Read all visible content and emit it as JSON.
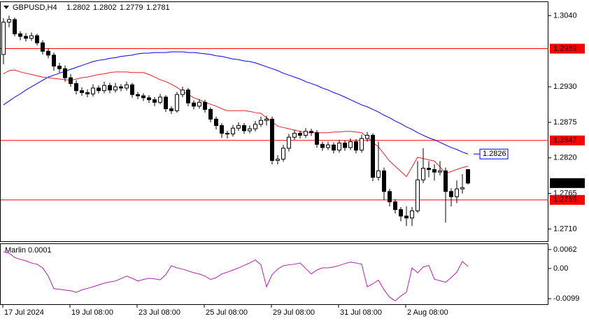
{
  "chart_data": [
    {
      "type": "candlestick",
      "title": "GBPUSD,H4",
      "categories": [
        "17 Jul 2024",
        null,
        null,
        null,
        null,
        null,
        null,
        null,
        null,
        null,
        null,
        null,
        "19 Jul 08:00",
        null,
        null,
        null,
        null,
        null,
        null,
        null,
        null,
        null,
        null,
        null,
        "23 Jul 08:00",
        null,
        null,
        null,
        null,
        null,
        null,
        null,
        null,
        null,
        null,
        null,
        "25 Jul 08:00",
        null,
        null,
        null,
        null,
        null,
        null,
        null,
        null,
        null,
        null,
        null,
        "29 Jul 08:00",
        null,
        null,
        null,
        null,
        null,
        null,
        null,
        null,
        null,
        null,
        null,
        "31 Jul 08:00",
        null,
        null,
        null,
        null,
        null,
        null,
        null,
        null,
        null,
        null,
        null,
        "2 Aug 08:00",
        null,
        null,
        null,
        null,
        null,
        null,
        null,
        null,
        null,
        null,
        null
      ],
      "candles": [
        [
          1.298,
          1.3036,
          1.2965,
          1.303
        ],
        [
          1.303,
          1.304,
          1.3022,
          1.3034
        ],
        [
          1.3034,
          1.3037,
          1.3008,
          1.3012
        ],
        [
          1.3012,
          1.3016,
          1.3002,
          1.3008
        ],
        [
          1.3008,
          1.3013,
          1.3,
          1.3005
        ],
        [
          1.3005,
          1.3014,
          1.3001,
          1.3009
        ],
        [
          1.3009,
          1.3012,
          1.2994,
          1.2998
        ],
        [
          1.2998,
          1.3002,
          1.298,
          1.2985
        ],
        [
          1.2985,
          1.299,
          1.2974,
          1.2979
        ],
        [
          1.2979,
          1.2983,
          1.2955,
          1.2962
        ],
        [
          1.2962,
          1.2967,
          1.2952,
          1.2958
        ],
        [
          1.2958,
          1.2963,
          1.2938,
          1.2944
        ],
        [
          1.2944,
          1.295,
          1.293,
          1.2935
        ],
        [
          1.2935,
          1.294,
          1.2918,
          1.2924
        ],
        [
          1.2924,
          1.2929,
          1.2916,
          1.2921
        ],
        [
          1.2921,
          1.2926,
          1.2914,
          1.2919
        ],
        [
          1.2919,
          1.2934,
          1.2915,
          1.2928
        ],
        [
          1.2928,
          1.2932,
          1.292,
          1.2924
        ],
        [
          1.2924,
          1.2938,
          1.292,
          1.2932
        ],
        [
          1.2932,
          1.2936,
          1.292,
          1.2925
        ],
        [
          1.2925,
          1.2936,
          1.2921,
          1.293
        ],
        [
          1.293,
          1.2934,
          1.2923,
          1.2928
        ],
        [
          1.2928,
          1.2938,
          1.2924,
          1.2933
        ],
        [
          1.2933,
          1.2936,
          1.2913,
          1.2918
        ],
        [
          1.2918,
          1.2922,
          1.2911,
          1.2916
        ],
        [
          1.2916,
          1.292,
          1.2908,
          1.2913
        ],
        [
          1.2913,
          1.2917,
          1.2905,
          1.291
        ],
        [
          1.291,
          1.2914,
          1.29,
          1.2906
        ],
        [
          1.2906,
          1.2919,
          1.2903,
          1.2914
        ],
        [
          1.2914,
          1.2917,
          1.2891,
          1.2896
        ],
        [
          1.2896,
          1.29,
          1.2888,
          1.2893
        ],
        [
          1.2893,
          1.2922,
          1.289,
          1.2918
        ],
        [
          1.2918,
          1.293,
          1.2914,
          1.2925
        ],
        [
          1.2925,
          1.2928,
          1.29,
          1.2905
        ],
        [
          1.2905,
          1.2909,
          1.2895,
          1.29
        ],
        [
          1.29,
          1.2911,
          1.2896,
          1.2906
        ],
        [
          1.2906,
          1.291,
          1.289,
          1.2895
        ],
        [
          1.2895,
          1.2898,
          1.2875,
          1.288
        ],
        [
          1.288,
          1.2884,
          1.2864,
          1.287
        ],
        [
          1.287,
          1.2874,
          1.2851,
          1.2858
        ],
        [
          1.2858,
          1.2862,
          1.285,
          1.2857
        ],
        [
          1.2857,
          1.2871,
          1.2853,
          1.2866
        ],
        [
          1.2866,
          1.2875,
          1.2862,
          1.287
        ],
        [
          1.287,
          1.2874,
          1.2857,
          1.2862
        ],
        [
          1.2862,
          1.287,
          1.2858,
          1.2865
        ],
        [
          1.2865,
          1.2877,
          1.2861,
          1.2872
        ],
        [
          1.2872,
          1.2884,
          1.2868,
          1.2878
        ],
        [
          1.2878,
          1.2885,
          1.287,
          1.288
        ],
        [
          1.288,
          1.2884,
          1.281,
          1.2816
        ],
        [
          1.2816,
          1.2824,
          1.281,
          1.2818
        ],
        [
          1.2818,
          1.284,
          1.2814,
          1.2835
        ],
        [
          1.2835,
          1.2857,
          1.283,
          1.2852
        ],
        [
          1.2852,
          1.2863,
          1.2848,
          1.2858
        ],
        [
          1.2858,
          1.2862,
          1.285,
          1.2855
        ],
        [
          1.2855,
          1.2866,
          1.2851,
          1.2861
        ],
        [
          1.2861,
          1.2865,
          1.2854,
          1.2859
        ],
        [
          1.2859,
          1.2863,
          1.2836,
          1.2841
        ],
        [
          1.2841,
          1.2845,
          1.2831,
          1.2836
        ],
        [
          1.2836,
          1.2845,
          1.2832,
          1.284
        ],
        [
          1.284,
          1.2844,
          1.2827,
          1.2832
        ],
        [
          1.2832,
          1.2848,
          1.2828,
          1.2843
        ],
        [
          1.2843,
          1.2847,
          1.2831,
          1.2836
        ],
        [
          1.2836,
          1.285,
          1.2832,
          1.2845
        ],
        [
          1.2845,
          1.2849,
          1.2827,
          1.2832
        ],
        [
          1.2832,
          1.2856,
          1.2828,
          1.285
        ],
        [
          1.285,
          1.286,
          1.2845,
          1.2855
        ],
        [
          1.2855,
          1.2858,
          1.2784,
          1.279
        ],
        [
          1.279,
          1.2845,
          1.2785,
          1.28
        ],
        [
          1.28,
          1.2805,
          1.2755,
          1.2768
        ],
        [
          1.2768,
          1.2772,
          1.2745,
          1.2752
        ],
        [
          1.2752,
          1.2756,
          1.2734,
          1.274
        ],
        [
          1.274,
          1.2744,
          1.2722,
          1.273
        ],
        [
          1.273,
          1.2745,
          1.2715,
          1.2727
        ],
        [
          1.2727,
          1.2744,
          1.2715,
          1.2738
        ],
        [
          1.2738,
          1.2815,
          1.2735,
          1.2786
        ],
        [
          1.2786,
          1.2835,
          1.2781,
          1.2804
        ],
        [
          1.2804,
          1.2815,
          1.279,
          1.2802
        ],
        [
          1.2802,
          1.281,
          1.2785,
          1.2798
        ],
        [
          1.2798,
          1.2815,
          1.2793,
          1.28
        ],
        [
          1.28,
          1.2805,
          1.272,
          1.2768
        ],
        [
          1.2768,
          1.2773,
          1.2745,
          1.276
        ],
        [
          1.276,
          1.2785,
          1.275,
          1.2772
        ],
        [
          1.2772,
          1.2795,
          1.2765,
          1.2774
        ],
        [
          1.2802,
          1.2802,
          1.2779,
          1.2781
        ]
      ],
      "series": [
        {
          "color": "#0000ff",
          "values": [
            1.2902,
            1.2908,
            1.2914,
            1.2919,
            1.2925,
            1.293,
            1.2935,
            1.294,
            1.2945,
            1.2948,
            1.2951,
            1.2954,
            1.2957,
            1.296,
            1.2963,
            1.2966,
            1.2969,
            1.2971,
            1.2972,
            1.2974,
            1.2975,
            1.2977,
            1.2978,
            1.2979,
            1.2981,
            1.2982,
            1.2982,
            1.2983,
            1.2983,
            1.2983,
            1.2984,
            1.2984,
            1.2984,
            1.2983,
            1.2983,
            1.2982,
            1.2981,
            1.298,
            1.2978,
            1.2977,
            1.2975,
            1.2973,
            1.2972,
            1.297,
            1.2969,
            1.2967,
            1.2964,
            1.2961,
            1.2958,
            1.2955,
            1.2951,
            1.2948,
            1.2945,
            1.2942,
            1.2938,
            1.2935,
            1.2932,
            1.2928,
            1.2925,
            1.2921,
            1.2918,
            1.2914,
            1.291,
            1.2906,
            1.2902,
            1.2899,
            1.2895,
            1.2891,
            1.2886,
            1.2882,
            1.2877,
            1.2873,
            1.2868,
            1.2864,
            1.2859,
            1.2855,
            1.2851,
            1.2848,
            1.2844,
            1.284,
            1.2836,
            1.2833,
            1.2829,
            1.2826
          ]
        },
        {
          "color": "#e8202a",
          "values": [
            1.295,
            1.2955,
            1.2956,
            1.2953,
            1.2951,
            1.2949,
            1.2947,
            1.2945,
            1.2944,
            1.2943,
            1.2942,
            1.2941,
            1.294,
            1.2942,
            1.2944,
            1.2945,
            1.2947,
            1.2949,
            1.295,
            1.2952,
            1.2953,
            1.2953,
            1.2953,
            1.2952,
            1.2952,
            1.2952,
            1.2949,
            1.2945,
            1.2941,
            1.2938,
            1.2934,
            1.2929,
            1.2923,
            1.2918,
            1.2913,
            1.291,
            1.2906,
            1.2903,
            1.29,
            1.2896,
            1.2893,
            1.2893,
            1.2893,
            1.2893,
            1.2892,
            1.289,
            1.2889,
            1.2882,
            1.2876,
            1.2869,
            1.2867,
            1.2865,
            1.2863,
            1.2861,
            1.2859,
            1.2859,
            1.2859,
            1.2859,
            1.2859,
            1.286,
            1.286,
            1.2861,
            1.2861,
            1.286,
            1.2859,
            1.2852,
            1.2844,
            1.2837,
            1.2826,
            1.2815,
            1.2807,
            1.2799,
            1.2791,
            1.2806,
            1.2821,
            1.2819,
            1.2817,
            1.2815,
            1.2806,
            1.2796,
            1.2799,
            1.2802,
            1.2805,
            1.2807
          ]
        }
      ],
      "ylim": [
        1.2691,
        1.3061
      ],
      "yticks": [
        {
          "value": 1.304,
          "label": "1.3040"
        },
        {
          "value": 1.293,
          "label": "1.2930"
        },
        1.2875,
        {
          "value": 1.282,
          "label": "1.2820"
        },
        1.2765,
        {
          "value": 1.271,
          "label": "1.2710"
        }
      ],
      "levels": [
        1.2989,
        1.2847,
        1.2755
      ],
      "level_color": "#ff0000"
    },
    {
      "type": "line",
      "title": "Marlin 0.0001",
      "series": [
        {
          "color": "#b020b0",
          "values": [
            0.0055,
            0.005,
            0.0036,
            0.003,
            0.0025,
            0.0018,
            0.0014,
            0.0002,
            -0.0025,
            -0.0066,
            -0.0068,
            -0.0071,
            -0.0073,
            -0.0078,
            -0.007,
            -0.0065,
            -0.006,
            -0.0054,
            -0.0048,
            -0.0044,
            -0.0041,
            -0.0033,
            -0.0025,
            -0.0032,
            -0.0041,
            -0.0036,
            -0.0032,
            -0.0034,
            -0.0037,
            -0.002,
            0.0009,
            0.0002,
            -0.0002,
            -0.0008,
            -0.0014,
            -0.0018,
            -0.0025,
            -0.0036,
            -0.003,
            -0.0018,
            -0.0012,
            -0.0005,
            0.0002,
            0.001,
            0.0018,
            0.0028,
            0.0012,
            -0.006,
            -0.002,
            -0.0002,
            0.0009,
            0.0012,
            0.0014,
            0.0018,
            0.0,
            -0.0018,
            -0.0005,
            0.0002,
            0.0002,
            0.0005,
            0.001,
            0.0016,
            0.0021,
            0.0018,
            0.0014,
            -0.006,
            -0.005,
            -0.0038,
            -0.007,
            -0.0094,
            -0.0106,
            -0.009,
            -0.0078,
            0.0002,
            -0.0014,
            0.0005,
            0.001,
            -0.0035,
            -0.004,
            -0.0045,
            -0.003,
            -0.0012,
            0.0023,
            0.0007
          ]
        }
      ],
      "ylim": [
        -0.0117,
        0.008
      ],
      "yticks": [
        0.0062,
        {
          "value": 0,
          "label": "0.00"
        },
        -0.0099
      ]
    }
  ]
}
